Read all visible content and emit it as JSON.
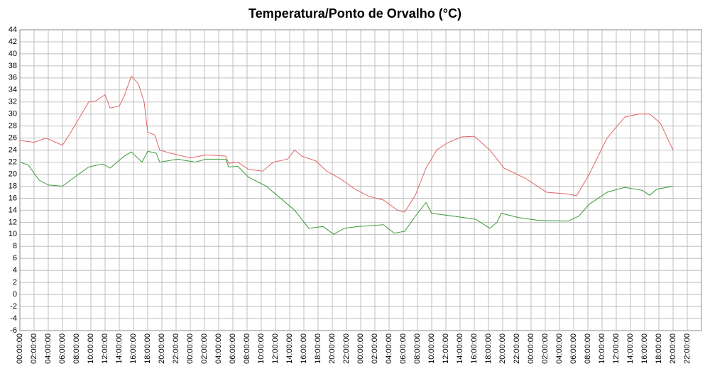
{
  "chart_data": {
    "type": "line",
    "title": "Temperatura/Ponto de Orvalho (°C)",
    "xlim": [
      0,
      96
    ],
    "xticks": [
      {
        "value": 0,
        "label": "00:00:00"
      },
      {
        "value": 2,
        "label": "02:00:00"
      },
      {
        "value": 4,
        "label": "04:00:00"
      },
      {
        "value": 6,
        "label": "06:00:00"
      },
      {
        "value": 8,
        "label": "08:00:00"
      },
      {
        "value": 10,
        "label": "10:00:00"
      },
      {
        "value": 12,
        "label": "12:00:00"
      },
      {
        "value": 14,
        "label": "14:00:00"
      },
      {
        "value": 16,
        "label": "16:00:00"
      },
      {
        "value": 18,
        "label": "18:00:00"
      },
      {
        "value": 20,
        "label": "20:00:00"
      },
      {
        "value": 22,
        "label": "22:00:00"
      },
      {
        "value": 24,
        "label": "00:00:00"
      },
      {
        "value": 26,
        "label": "02:00:00"
      },
      {
        "value": 28,
        "label": "04:00:00"
      },
      {
        "value": 30,
        "label": "06:00:00"
      },
      {
        "value": 32,
        "label": "08:00:00"
      },
      {
        "value": 34,
        "label": "10:00:00"
      },
      {
        "value": 36,
        "label": "12:00:00"
      },
      {
        "value": 38,
        "label": "14:00:00"
      },
      {
        "value": 40,
        "label": "16:00:00"
      },
      {
        "value": 42,
        "label": "18:00:00"
      },
      {
        "value": 44,
        "label": "20:00:00"
      },
      {
        "value": 46,
        "label": "22:00:00"
      },
      {
        "value": 48,
        "label": "00:00:00"
      },
      {
        "value": 50,
        "label": "02:00:00"
      },
      {
        "value": 52,
        "label": "04:00:00"
      },
      {
        "value": 54,
        "label": "06:00:00"
      },
      {
        "value": 56,
        "label": "08:00:00"
      },
      {
        "value": 58,
        "label": "10:00:00"
      },
      {
        "value": 60,
        "label": "12:00:00"
      },
      {
        "value": 62,
        "label": "14:00:00"
      },
      {
        "value": 64,
        "label": "16:00:00"
      },
      {
        "value": 66,
        "label": "18:00:00"
      },
      {
        "value": 68,
        "label": "20:00:00"
      },
      {
        "value": 70,
        "label": "22:00:00"
      },
      {
        "value": 72,
        "label": "00:00:00"
      },
      {
        "value": 74,
        "label": "02:00:00"
      },
      {
        "value": 76,
        "label": "04:00:00"
      },
      {
        "value": 78,
        "label": "06:00:00"
      },
      {
        "value": 80,
        "label": "08:00:00"
      },
      {
        "value": 82,
        "label": "10:00:00"
      },
      {
        "value": 84,
        "label": "12:00:00"
      },
      {
        "value": 86,
        "label": "14:00:00"
      },
      {
        "value": 88,
        "label": "16:00:00"
      },
      {
        "value": 90,
        "label": "18:00:00"
      },
      {
        "value": 92,
        "label": "20:00:00"
      },
      {
        "value": 94,
        "label": "22:00:00"
      }
    ],
    "ylim": [
      -6,
      44
    ],
    "yticks": [
      -6,
      -4,
      -2,
      0,
      2,
      4,
      6,
      8,
      10,
      12,
      14,
      16,
      18,
      20,
      22,
      24,
      26,
      28,
      30,
      32,
      34,
      36,
      38,
      40,
      42,
      44
    ],
    "grid": true,
    "series": [
      {
        "color": "#e06666",
        "x": [
          0,
          2,
          3.7,
          6,
          7.2,
          8.7,
          9.7,
          10.7,
          12,
          12.7,
          14,
          14.7,
          15.7,
          16.7,
          17.5,
          18,
          19,
          19.7,
          21.2,
          24,
          26.2,
          29,
          29.4,
          30.7,
          32.2,
          34.2,
          35.7,
          37.7,
          38.7,
          39.7,
          41.7,
          43.2,
          45.2,
          47.2,
          49.2,
          51.2,
          53.2,
          54.2,
          55.7,
          57.2,
          58.7,
          60.2,
          62.2,
          64,
          66.2,
          68.2,
          71.2,
          74.2,
          77.2,
          78.4,
          80.2,
          82.7,
          85.2,
          87.2,
          88.7,
          90.2,
          92
        ],
        "values": [
          25.6,
          25.3,
          26,
          24.8,
          27,
          30,
          32,
          32.2,
          33.2,
          31,
          31.3,
          33,
          36.3,
          35,
          32,
          27,
          26.5,
          24,
          23.5,
          22.7,
          23.2,
          23,
          21.8,
          22,
          20.8,
          20.5,
          22,
          22.5,
          24,
          23,
          22.2,
          20.5,
          19.2,
          17.5,
          16.3,
          15.7,
          14,
          13.7,
          16.5,
          21,
          24,
          25.2,
          26.2,
          26.3,
          24,
          21,
          19.3,
          17,
          16.7,
          16.4,
          20,
          26,
          29.5,
          30,
          30,
          28.5,
          24
        ]
      },
      {
        "color": "#3a9a3a",
        "x": [
          0,
          1.2,
          2.7,
          4,
          6,
          7.7,
          9.7,
          11.7,
          12.7,
          14.7,
          15.7,
          17.2,
          18,
          19.2,
          19.7,
          22.2,
          24.7,
          26.2,
          29,
          29.4,
          30.7,
          32.2,
          34.7,
          36.7,
          38.7,
          40.7,
          42.7,
          44.2,
          45.7,
          47.7,
          51.2,
          52.7,
          54.2,
          55.7,
          57.2,
          58,
          61.2,
          64.2,
          66.2,
          67.2,
          67.8,
          70.2,
          73.2,
          77.2,
          78.7,
          80.2,
          82.7,
          85.2,
          87.7,
          88.7,
          89.7,
          92
        ],
        "values": [
          22,
          21.5,
          19,
          18.2,
          18,
          19.5,
          21.2,
          21.7,
          21,
          23,
          23.7,
          22,
          23.8,
          23.5,
          22,
          22.5,
          22,
          22.5,
          22.5,
          21.2,
          21.3,
          19.5,
          18,
          16,
          14,
          11,
          11.3,
          10,
          11,
          11.3,
          11.6,
          10.2,
          10.5,
          13,
          15.3,
          13.5,
          13,
          12.5,
          11,
          12,
          13.5,
          12.8,
          12.3,
          12.2,
          13,
          15,
          17,
          17.8,
          17.3,
          16.5,
          17.5,
          18
        ]
      }
    ]
  }
}
